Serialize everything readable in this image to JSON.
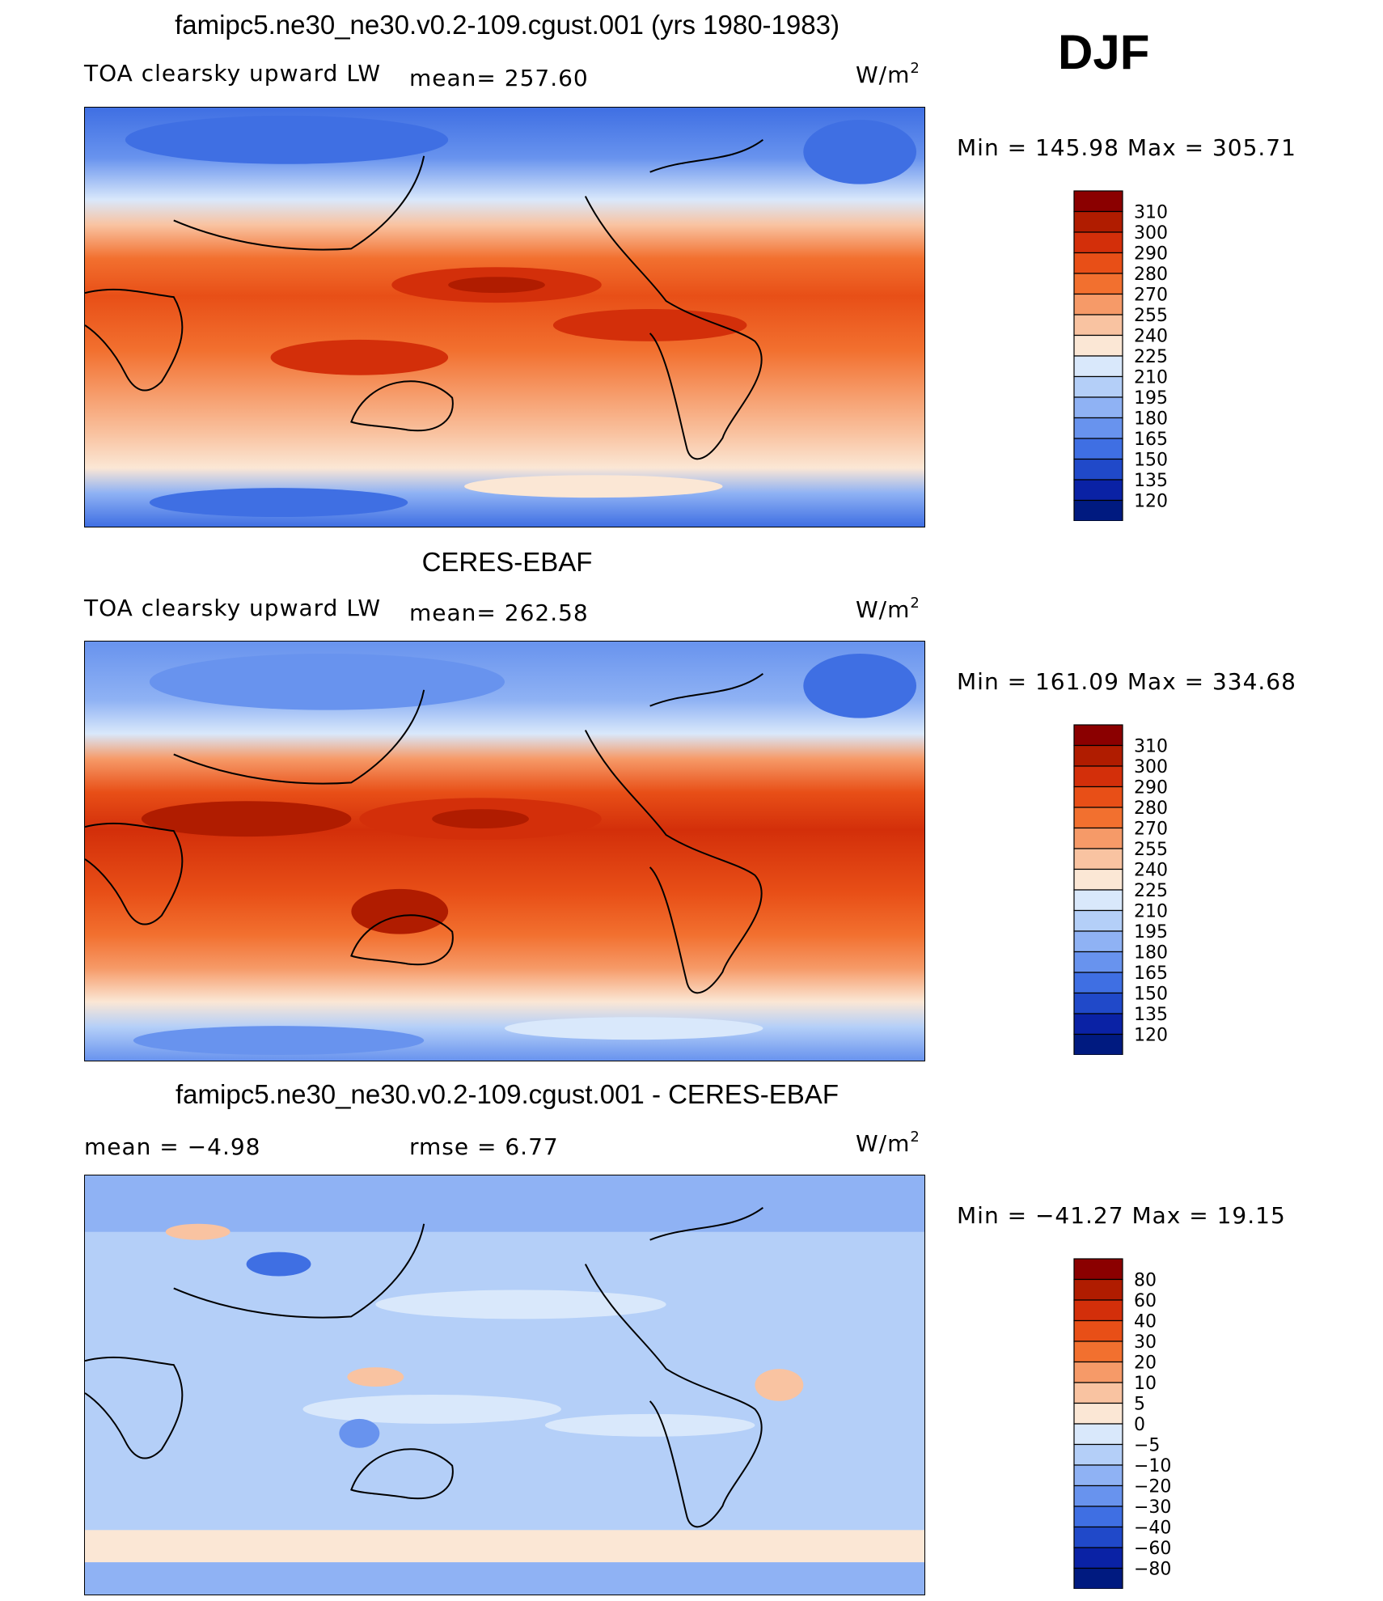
{
  "season": "DJF",
  "panels": [
    {
      "id": "model",
      "title": "famipc5.ne30_ne30.v0.2-109.cgust.001 (yrs 1980-1983)",
      "left_label": "TOA clearsky upward LW",
      "mid_label": "mean= 257.60",
      "units_base": "W/m",
      "units_exp": "2",
      "minmax": "Min  =  145.98  Max  =  305.71",
      "levels": [
        "310",
        "300",
        "290",
        "280",
        "270",
        "255",
        "240",
        "225",
        "210",
        "195",
        "180",
        "165",
        "150",
        "135",
        "120"
      ],
      "colors": [
        "#8b0000",
        "#b01c00",
        "#d32f0a",
        "#e84f17",
        "#f2702f",
        "#f69a68",
        "#f9c3a1",
        "#fbe7d5",
        "#d9e8fb",
        "#b4cff8",
        "#8fb2f4",
        "#6893ee",
        "#3f6fe3",
        "#2049c9",
        "#0a22a5",
        "#001a80"
      ]
    },
    {
      "id": "obs",
      "title": "CERES-EBAF",
      "left_label": "TOA clearsky upward LW",
      "mid_label": "mean= 262.58",
      "units_base": "W/m",
      "units_exp": "2",
      "minmax": "Min  =  161.09  Max  =  334.68",
      "levels": [
        "310",
        "300",
        "290",
        "280",
        "270",
        "255",
        "240",
        "225",
        "210",
        "195",
        "180",
        "165",
        "150",
        "135",
        "120"
      ],
      "colors": [
        "#8b0000",
        "#b01c00",
        "#d32f0a",
        "#e84f17",
        "#f2702f",
        "#f69a68",
        "#f9c3a1",
        "#fbe7d5",
        "#d9e8fb",
        "#b4cff8",
        "#8fb2f4",
        "#6893ee",
        "#3f6fe3",
        "#2049c9",
        "#0a22a5",
        "#001a80"
      ]
    },
    {
      "id": "diff",
      "title": "famipc5.ne30_ne30.v0.2-109.cgust.001 - CERES-EBAF",
      "left_label": "mean =    −4.98",
      "mid_label": "rmse =     6.77",
      "units_base": "W/m",
      "units_exp": "2",
      "minmax": "Min  =  −41.27  Max  =    19.15",
      "levels": [
        "80",
        "60",
        "40",
        "30",
        "20",
        "10",
        "5",
        "0",
        "−5",
        "−10",
        "−20",
        "−30",
        "−40",
        "−60",
        "−80"
      ],
      "colors": [
        "#8b0000",
        "#b01c00",
        "#d32f0a",
        "#e84f17",
        "#f2702f",
        "#f69a68",
        "#f9c3a1",
        "#fbe7d5",
        "#d9e8fb",
        "#b4cff8",
        "#8fb2f4",
        "#6893ee",
        "#3f6fe3",
        "#2049c9",
        "#0a22a5",
        "#001a80"
      ]
    }
  ]
}
